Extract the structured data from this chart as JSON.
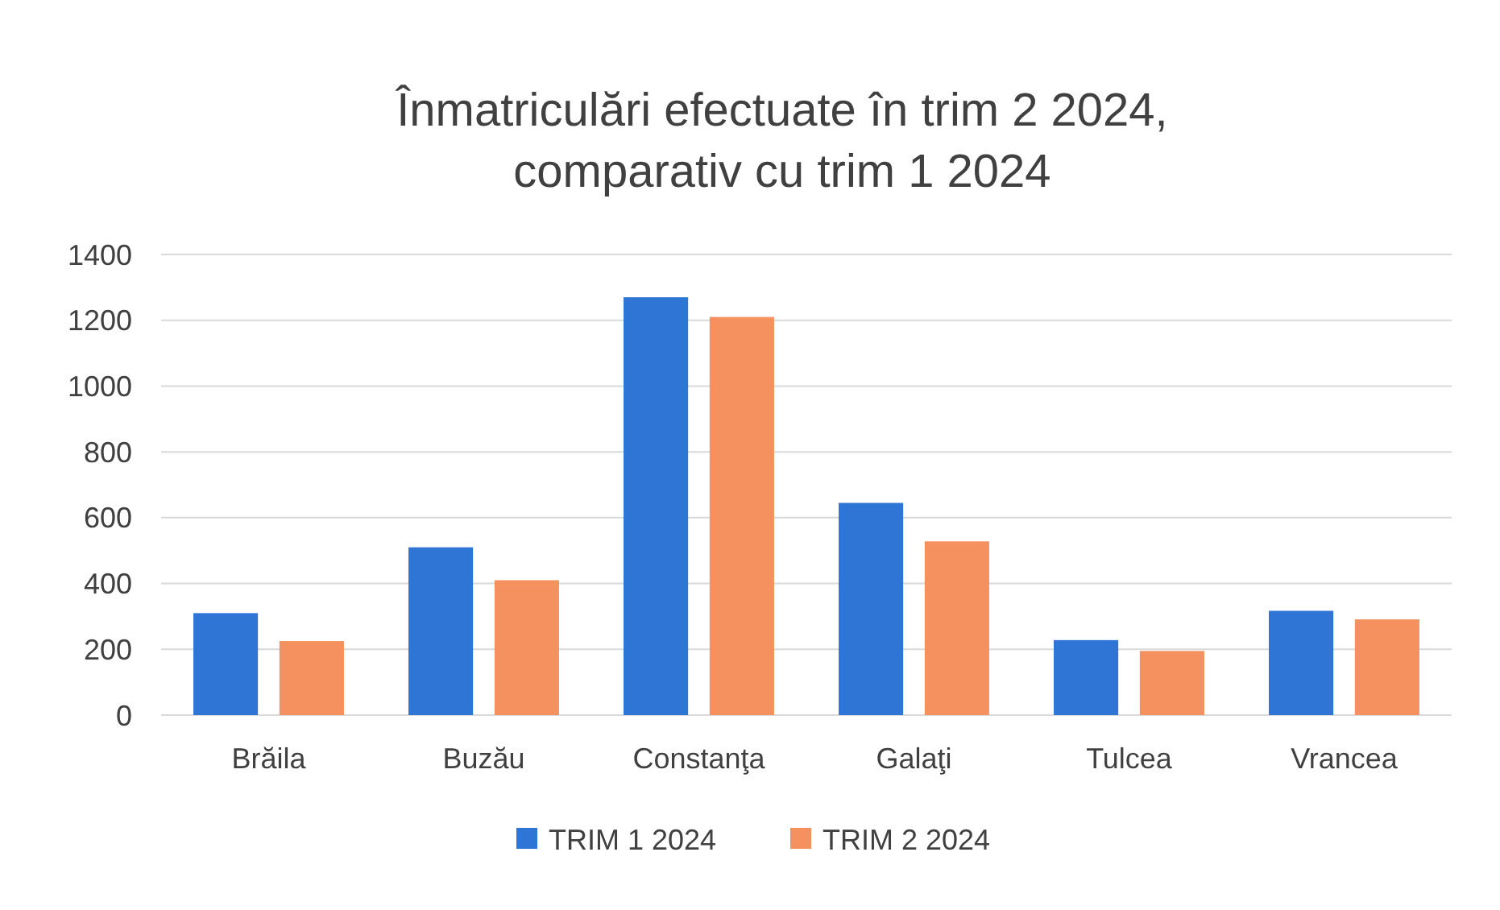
{
  "chart_data": {
    "type": "bar",
    "title": "Înmatriculări efectuate în trim 2 2024,\ncomparativ cu trim 1 2024",
    "categories": [
      "Brăila",
      "Buzău",
      "Constanţa",
      "Galaţi",
      "Tulcea",
      "Vrancea"
    ],
    "series": [
      {
        "name": "TRIM 1 2024",
        "color": "#2e75d6",
        "values": [
          310,
          510,
          1270,
          645,
          228,
          317
        ]
      },
      {
        "name": "TRIM 2 2024",
        "color": "#f4915e",
        "values": [
          225,
          410,
          1210,
          528,
          195,
          291
        ]
      }
    ],
    "ylim": [
      0,
      1400
    ],
    "yticks": [
      0,
      200,
      400,
      600,
      800,
      1000,
      1200,
      1400
    ],
    "grid": "y",
    "legend": "bottom"
  }
}
